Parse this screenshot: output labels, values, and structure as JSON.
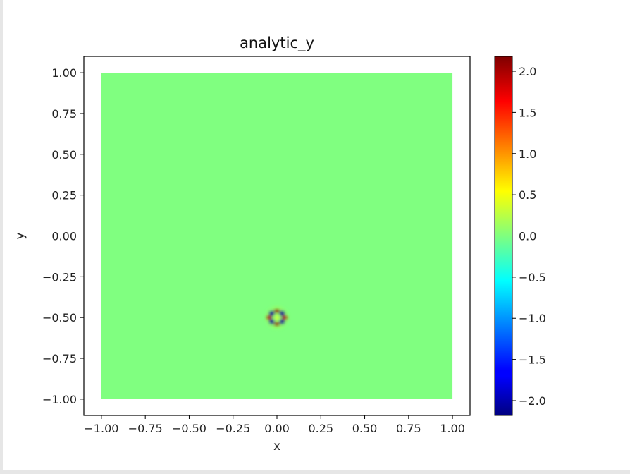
{
  "chart_data": {
    "type": "heatmap",
    "title": "analytic_y",
    "xlabel": "x",
    "ylabel": "y",
    "xlim": [
      -1.1,
      1.1
    ],
    "ylim": [
      -1.1,
      1.1
    ],
    "data_extent": {
      "x": [
        -1.0,
        1.0
      ],
      "y": [
        -1.0,
        1.0
      ]
    },
    "background_value": 0.0,
    "colormap": "jet",
    "colorbar_range": [
      -2.18,
      2.18
    ],
    "x_ticks": [
      -1.0,
      -0.75,
      -0.5,
      -0.25,
      0.0,
      0.25,
      0.5,
      0.75,
      1.0
    ],
    "x_tick_labels": [
      "−1.00",
      "−0.75",
      "−0.50",
      "−0.25",
      "0.00",
      "0.25",
      "0.50",
      "0.75",
      "1.00"
    ],
    "y_ticks": [
      1.0,
      0.75,
      0.5,
      0.25,
      0.0,
      -0.25,
      -0.5,
      -0.75,
      -1.0
    ],
    "y_tick_labels": [
      "1.00",
      "0.75",
      "0.50",
      "0.25",
      "0.00",
      "−0.25",
      "−0.50",
      "−0.75",
      "−1.00"
    ],
    "colorbar_ticks": [
      2.0,
      1.5,
      1.0,
      0.5,
      0.0,
      -0.5,
      -1.0,
      -1.5,
      -2.0
    ],
    "colorbar_tick_labels": [
      "2.0",
      "1.5",
      "1.0",
      "0.5",
      "0.0",
      "−0.5",
      "−1.0",
      "−1.5",
      "−2.0"
    ],
    "feature": {
      "center": [
        0.0,
        -0.5
      ],
      "description_values": {
        "peak": 2.1,
        "trough": -2.1
      },
      "lobes": [
        {
          "x": -0.03,
          "y": -0.475,
          "value": -2.1
        },
        {
          "x": 0.03,
          "y": -0.475,
          "value": -2.1
        },
        {
          "x": -0.03,
          "y": -0.525,
          "value": -2.1
        },
        {
          "x": 0.03,
          "y": -0.525,
          "value": -2.1
        },
        {
          "x": 0.0,
          "y": -0.46,
          "value": 2.1
        },
        {
          "x": 0.0,
          "y": -0.54,
          "value": 2.1
        },
        {
          "x": -0.045,
          "y": -0.5,
          "value": 2.0
        },
        {
          "x": 0.045,
          "y": -0.5,
          "value": 2.0
        }
      ]
    }
  }
}
